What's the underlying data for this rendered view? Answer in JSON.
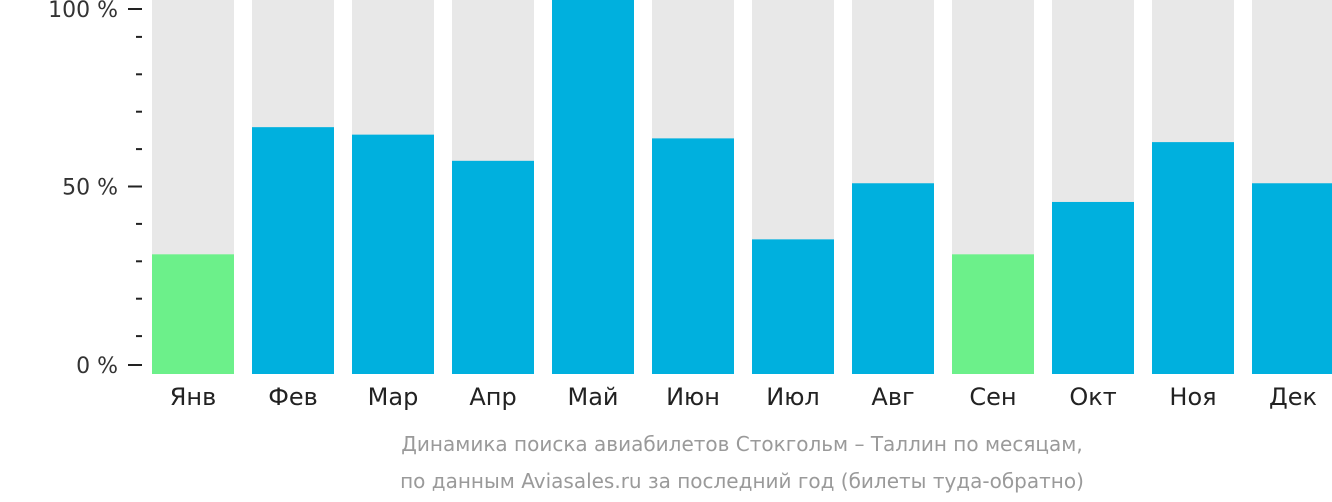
{
  "chart_data": {
    "type": "bar",
    "categories": [
      "Янв",
      "Фев",
      "Мар",
      "Апр",
      "Май",
      "Июн",
      "Июл",
      "Авг",
      "Сен",
      "Окт",
      "Ноя",
      "Дек"
    ],
    "values": [
      32,
      66,
      64,
      57,
      100,
      63,
      36,
      51,
      32,
      46,
      62,
      51
    ],
    "ylim": [
      0,
      100
    ],
    "y_ticks": [
      {
        "value": 0,
        "label": "0 %"
      },
      {
        "value": 50,
        "label": "50 %"
      },
      {
        "value": 100,
        "label": "100 %"
      }
    ],
    "caption_lines": [
      "Динамика поиска авиабилетов Стокгольм – Таллин по месяцам,",
      "по данным Aviasales.ru за последний год (билеты туда-обратно)"
    ],
    "low_months": [
      "Янв",
      "Сен"
    ],
    "colors": {
      "bar": "#00b0de",
      "bar_low": "#6cf08a",
      "track": "#e8e8e8",
      "axis": "#222222",
      "caption": "#9a9a9a"
    },
    "grid": false,
    "legend": "none"
  }
}
